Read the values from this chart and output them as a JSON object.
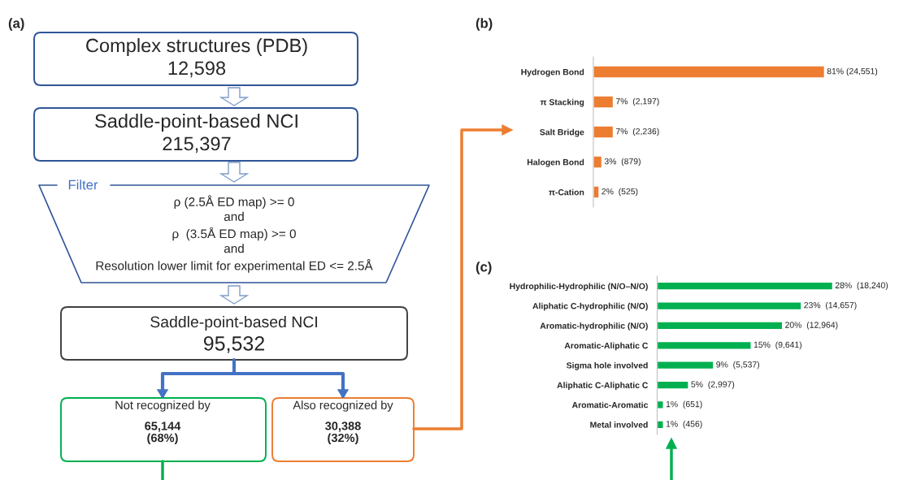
{
  "chart_data": [
    {
      "type": "other",
      "title": "(a)",
      "annotations": [
        "Complex structures (PDB)\n12,598",
        "Saddle-point-based NCI\n215,397",
        "Filter",
        "ρ (2.5Å ED map) >= 0\nand\nρ  (3.5Å ED map) >= 0\nand\nResolution lower limit for experimental ED <= 2.5Å",
        "Saddle-point-based NCI\n95,532",
        "Not recognized by\n65,144\n(68%)",
        "Also recognized by\n30,388\n(32%)"
      ]
    },
    {
      "type": "bar",
      "orientation": "horizontal",
      "title": "(b)",
      "categories": [
        "Hydrogen Bond",
        "π Stacking",
        "Salt Bridge",
        "Halogen Bond",
        "π-Cation"
      ],
      "values": [
        81,
        7,
        7,
        3,
        2
      ],
      "color": "#ed7d31",
      "value_labels": [
        "81% (24,551)",
        "7%  (2,197)",
        "7%  (2,236)",
        "3%  (879)",
        "2%  (525)"
      ]
    },
    {
      "type": "bar",
      "orientation": "horizontal",
      "title": "(c)",
      "categories": [
        "Hydrophilic-Hydrophilic (N/O–N/O)",
        "Aliphatic C-hydrophilic (N/O)",
        "Aromatic-hydrophilic (N/O)",
        "Aromatic-Aliphatic C",
        "Sigma hole involved",
        "Aliphatic C-Aliphatic C",
        "Aromatic-Aromatic",
        "Metal involved"
      ],
      "values": [
        28,
        23,
        20,
        15,
        9,
        5,
        1,
        1
      ],
      "color": "#00b050",
      "value_labels": [
        "28%  (18,240)",
        "23%  (14,657)",
        "20%  (12,964)",
        "15%  (9,641)",
        "9%  (5,537)",
        "5%  (2,997)",
        "1%  (651)",
        "1%  (456)"
      ]
    }
  ]
}
